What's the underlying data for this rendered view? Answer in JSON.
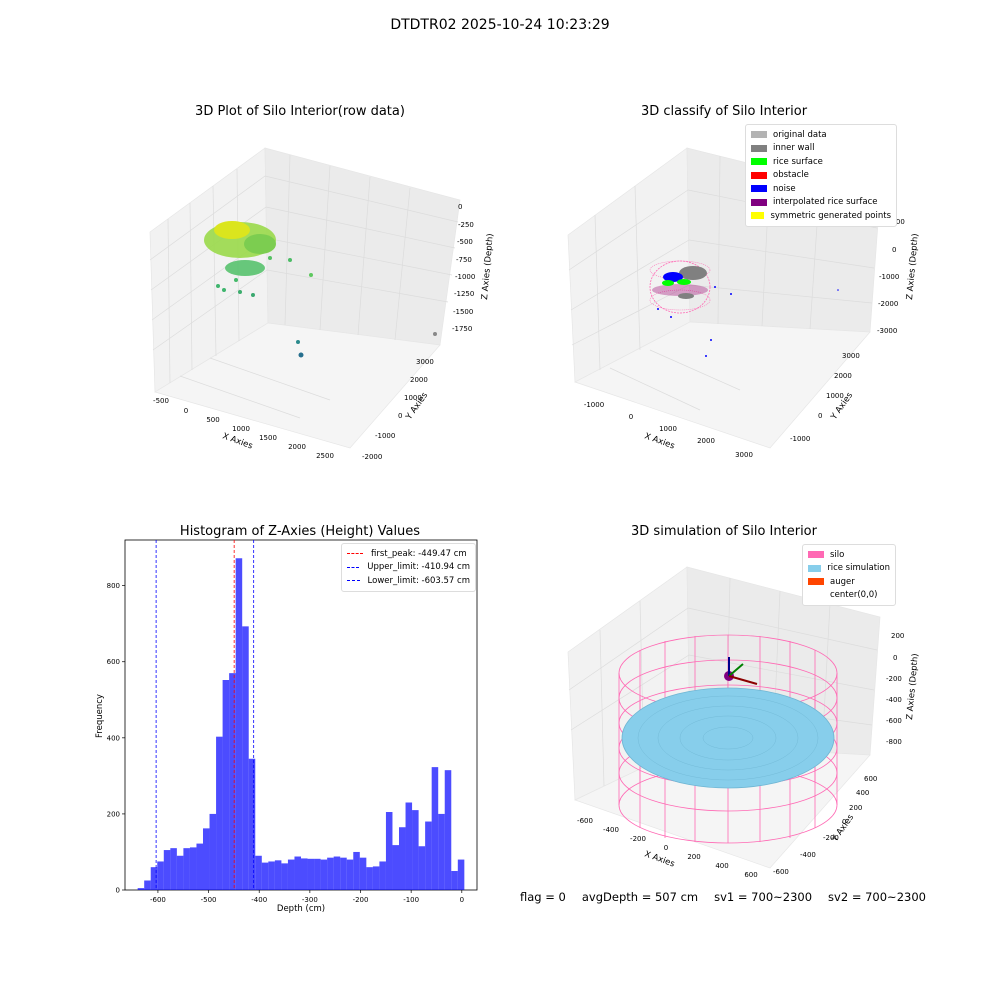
{
  "figure": {
    "suptitle": "DTDTR02 2025-10-24 10:23:29",
    "footer": {
      "flag": "flag = 0",
      "avg_depth": "avgDepth = 507 cm",
      "sv1": "sv1 = 700~2300",
      "sv2": "sv2 = 700~2300"
    }
  },
  "panels": {
    "p1": {
      "title": "3D Plot of Silo Interior(row data)",
      "xlabel": "X Axies",
      "ylabel": "Y Axies",
      "zlabel": "Z Axies (Depth)",
      "xticks": [
        "-500",
        "0",
        "500",
        "1000",
        "1500",
        "2000",
        "2500"
      ],
      "yticks": [
        "-2000",
        "-1000",
        "0",
        "1000",
        "2000",
        "3000"
      ],
      "zticks": [
        "0",
        "-250",
        "-500",
        "-750",
        "-1000",
        "-1250",
        "-1500",
        "-1750"
      ]
    },
    "p2": {
      "title": "3D classify of Silo Interior",
      "xlabel": "X Axies",
      "ylabel": "Y Axies",
      "zlabel": "Z Axies (Depth)",
      "xticks": [
        "-1000",
        "0",
        "1000",
        "2000",
        "3000"
      ],
      "yticks": [
        "-1000",
        "0",
        "1000",
        "2000",
        "3000"
      ],
      "zticks": [
        "1000",
        "0",
        "-1000",
        "-2000",
        "-3000"
      ],
      "legend": [
        {
          "label": "original data",
          "color": "#b3b3b3"
        },
        {
          "label": "inner wall",
          "color": "#808080"
        },
        {
          "label": "rice surface",
          "color": "#00ff00"
        },
        {
          "label": "obstacle",
          "color": "#ff0000"
        },
        {
          "label": "noise",
          "color": "#0000ff"
        },
        {
          "label": "interpolated rice surface",
          "color": "#800080"
        },
        {
          "label": "symmetric generated points",
          "color": "#ffff00"
        }
      ]
    },
    "p4": {
      "title": "3D simulation of Silo Interior",
      "xlabel": "X Axies",
      "ylabel": "Y Axies",
      "zlabel": "Z Axies (Depth)",
      "xticks": [
        "-600",
        "-400",
        "-200",
        "0",
        "200",
        "400",
        "600"
      ],
      "yticks": [
        "-600",
        "-400",
        "-200",
        "0",
        "200",
        "400",
        "600"
      ],
      "zticks": [
        "200",
        "0",
        "-200",
        "-400",
        "-600",
        "-800"
      ],
      "legend": [
        {
          "label": "silo",
          "color": "#ff69b4"
        },
        {
          "label": "rice simulation",
          "color": "#87ceeb"
        },
        {
          "label": "auger",
          "color": "#ff4500"
        },
        {
          "label": "center(0,0)",
          "color": "#ffffff"
        }
      ]
    }
  },
  "chart_data": {
    "type": "bar",
    "title": "Histogram of Z-Axies (Height) Values",
    "xlabel": "Depth (cm)",
    "ylabel": "Frequency",
    "xlim": [
      -665,
      30
    ],
    "ylim": [
      0,
      920
    ],
    "xticks": [
      -600,
      -500,
      -400,
      -300,
      -200,
      -100,
      0
    ],
    "yticks": [
      0,
      200,
      400,
      600,
      800
    ],
    "bar_color": "#0000ff",
    "bin_edges_start": -640,
    "bin_width": 12.9,
    "values": [
      5,
      25,
      60,
      75,
      105,
      110,
      90,
      110,
      112,
      122,
      162,
      200,
      403,
      552,
      570,
      872,
      693,
      345,
      90,
      72,
      75,
      78,
      70,
      80,
      88,
      83,
      82,
      82,
      80,
      85,
      88,
      85,
      80,
      100,
      85,
      60,
      62,
      75,
      205,
      118,
      165,
      230,
      210,
      115,
      180,
      323,
      200,
      315,
      50,
      80
    ],
    "vlines": [
      {
        "label": "first_peak: -449.47 cm",
        "x": -449.47,
        "color": "#ff0000"
      },
      {
        "label": "Upper_limit: -410.94 cm",
        "x": -410.94,
        "color": "#0000ff"
      },
      {
        "label": "Lower_limit: -603.57 cm",
        "x": -603.57,
        "color": "#0000ff"
      }
    ]
  }
}
